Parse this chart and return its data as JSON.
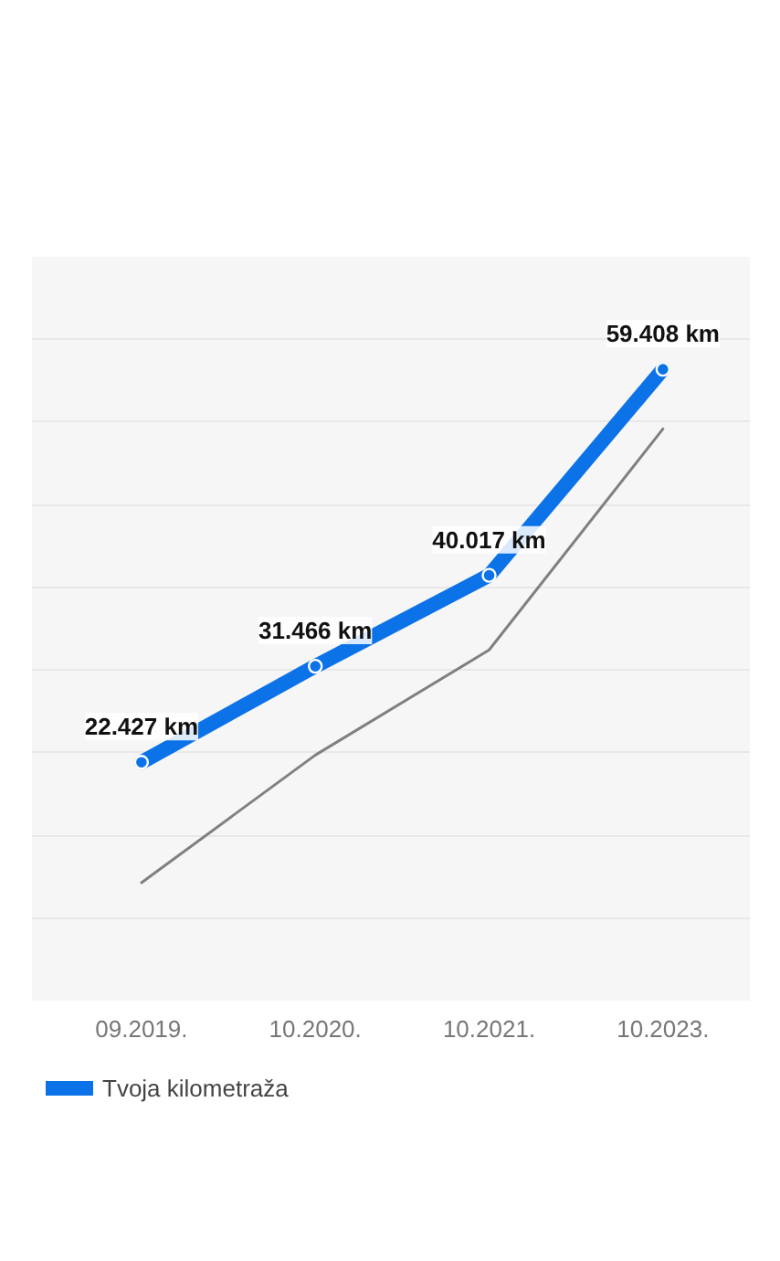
{
  "chart_data": {
    "type": "line",
    "categories": [
      "09.2019.",
      "10.2020.",
      "10.2021.",
      "10.2023."
    ],
    "series": [
      {
        "name": "Tvoja kilometraža",
        "color": "#0b72e7",
        "values": [
          22427,
          31466,
          40017,
          59408
        ],
        "value_labels": [
          "22.427 km",
          "31.466 km",
          "40.017 km",
          "59.408 km"
        ],
        "marker": "circle"
      },
      {
        "color": "#808080",
        "values": [
          11100,
          23100,
          33000,
          53800
        ],
        "marker": "none"
      }
    ],
    "ylim": [
      0,
      70000
    ],
    "yticks": [
      {
        "value": 7778,
        "label": null
      },
      {
        "value": 15556,
        "label": null
      },
      {
        "value": 23333,
        "label": null
      },
      {
        "value": 31111,
        "label": null
      },
      {
        "value": 38889,
        "label": null
      },
      {
        "value": 46667,
        "label": null
      },
      {
        "value": 54444,
        "label": null
      },
      {
        "value": 62222,
        "label": null
      }
    ],
    "tick_labels": "x",
    "grid": "y",
    "legend": "bottom"
  }
}
